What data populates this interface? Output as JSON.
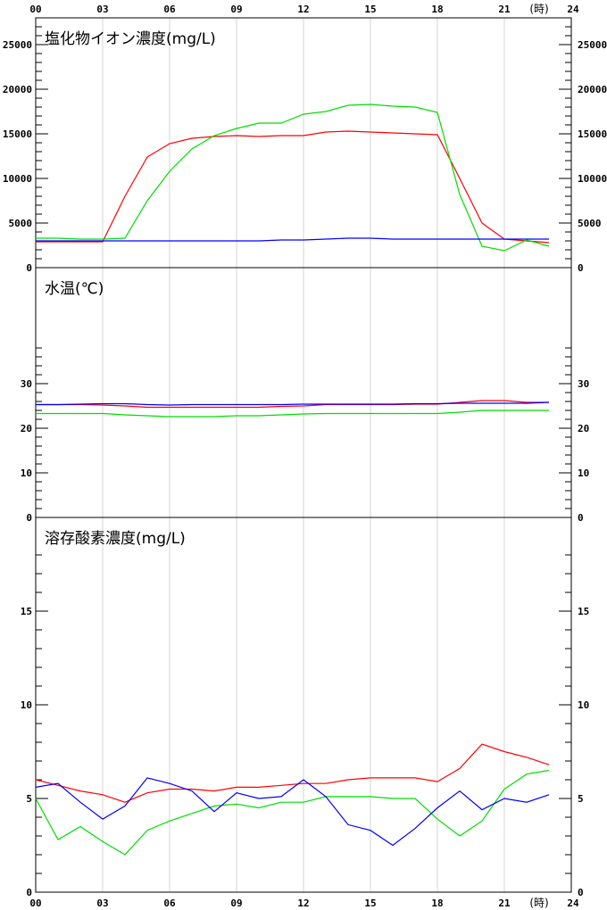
{
  "x_unit": "(時)",
  "chart_data": [
    {
      "type": "line",
      "title": "塩化物イオン濃度(mg/L)",
      "xlabel": "",
      "ylabel": "",
      "x_ticks": [
        "00",
        "03",
        "06",
        "09",
        "12",
        "15",
        "18",
        "21",
        "24"
      ],
      "xlim": [
        0,
        24
      ],
      "ylim": [
        0,
        28000
      ],
      "y_ticks": [
        0,
        5000,
        10000,
        15000,
        20000,
        25000
      ],
      "y_minor_step": 1000,
      "x": [
        0,
        1,
        2,
        3,
        4,
        5,
        6,
        7,
        8,
        9,
        10,
        11,
        12,
        13,
        14,
        15,
        16,
        17,
        18,
        19,
        20,
        21,
        22,
        23
      ],
      "series": [
        {
          "color": "#ff0000",
          "values": [
            2900,
            2900,
            2900,
            2900,
            8000,
            12400,
            13900,
            14500,
            14700,
            14800,
            14700,
            14800,
            14800,
            15200,
            15300,
            15200,
            15100,
            15000,
            14900,
            10000,
            5000,
            3200,
            3000,
            2800
          ]
        },
        {
          "color": "#00dd00",
          "values": [
            3300,
            3300,
            3200,
            3200,
            3300,
            7500,
            10800,
            13300,
            14800,
            15600,
            16200,
            16200,
            17200,
            17500,
            18200,
            18300,
            18100,
            18000,
            17400,
            8200,
            2400,
            1900,
            3100,
            2400
          ]
        },
        {
          "color": "#0000ff",
          "values": [
            3000,
            3000,
            3000,
            3000,
            3000,
            3000,
            3000,
            3000,
            3000,
            3000,
            3000,
            3100,
            3100,
            3200,
            3300,
            3300,
            3200,
            3200,
            3200,
            3200,
            3200,
            3200,
            3200,
            3200
          ]
        }
      ]
    },
    {
      "type": "line",
      "title": "水温(℃)",
      "xlabel": "",
      "ylabel": "",
      "xlim": [
        0,
        24
      ],
      "ylim": [
        0,
        56
      ],
      "y_ticks": [
        0,
        10,
        20,
        30
      ],
      "y_minor_step": 2,
      "y_minor_max": 38,
      "x": [
        0,
        1,
        2,
        3,
        4,
        5,
        6,
        7,
        8,
        9,
        10,
        11,
        12,
        13,
        14,
        15,
        16,
        17,
        18,
        19,
        20,
        21,
        22,
        23
      ],
      "series": [
        {
          "color": "#ff0000",
          "values": [
            25.3,
            25.3,
            25.3,
            25.2,
            25.0,
            24.7,
            24.7,
            24.7,
            24.7,
            24.7,
            24.7,
            24.9,
            25.0,
            25.3,
            25.3,
            25.3,
            25.3,
            25.4,
            25.4,
            25.8,
            26.2,
            26.2,
            25.8,
            25.8
          ]
        },
        {
          "color": "#00dd00",
          "values": [
            23.3,
            23.3,
            23.3,
            23.3,
            23.0,
            22.8,
            22.6,
            22.6,
            22.6,
            22.8,
            22.8,
            23.0,
            23.2,
            23.3,
            23.3,
            23.3,
            23.3,
            23.3,
            23.3,
            23.6,
            24.0,
            24.0,
            24.0,
            24.0
          ]
        },
        {
          "color": "#0000ff",
          "values": [
            25.3,
            25.3,
            25.4,
            25.5,
            25.5,
            25.3,
            25.2,
            25.3,
            25.3,
            25.3,
            25.3,
            25.3,
            25.4,
            25.4,
            25.4,
            25.4,
            25.4,
            25.5,
            25.5,
            25.6,
            25.6,
            25.6,
            25.6,
            25.8
          ]
        }
      ]
    },
    {
      "type": "line",
      "title": "溶存酸素濃度(mg/L)",
      "xlabel": "",
      "ylabel": "",
      "x_ticks": [
        "00",
        "03",
        "06",
        "09",
        "12",
        "15",
        "18",
        "21",
        "24"
      ],
      "xlim": [
        0,
        24
      ],
      "ylim": [
        0,
        20
      ],
      "y_ticks": [
        0,
        5,
        10,
        15
      ],
      "y_minor_step": 1,
      "y_minor_max": 18,
      "x": [
        0,
        1,
        2,
        3,
        4,
        5,
        6,
        7,
        8,
        9,
        10,
        11,
        12,
        13,
        14,
        15,
        16,
        17,
        18,
        19,
        20,
        21,
        22,
        23
      ],
      "series": [
        {
          "color": "#ff0000",
          "values": [
            6.0,
            5.7,
            5.4,
            5.2,
            4.8,
            5.3,
            5.5,
            5.5,
            5.4,
            5.6,
            5.6,
            5.7,
            5.8,
            5.8,
            6.0,
            6.1,
            6.1,
            6.1,
            5.9,
            6.6,
            7.9,
            7.5,
            7.2,
            6.8
          ]
        },
        {
          "color": "#00dd00",
          "values": [
            5.0,
            2.8,
            3.5,
            2.7,
            2.0,
            3.3,
            3.8,
            4.2,
            4.6,
            4.7,
            4.5,
            4.8,
            4.8,
            5.1,
            5.1,
            5.1,
            5.0,
            5.0,
            3.9,
            3.0,
            3.8,
            5.5,
            6.3,
            6.5
          ]
        },
        {
          "color": "#0000ff",
          "values": [
            5.6,
            5.8,
            4.8,
            3.9,
            4.6,
            6.1,
            5.8,
            5.4,
            4.3,
            5.3,
            5.0,
            5.1,
            6.0,
            5.1,
            3.6,
            3.3,
            2.5,
            3.4,
            4.5,
            5.4,
            4.4,
            5.0,
            4.8,
            5.2
          ]
        }
      ]
    }
  ]
}
